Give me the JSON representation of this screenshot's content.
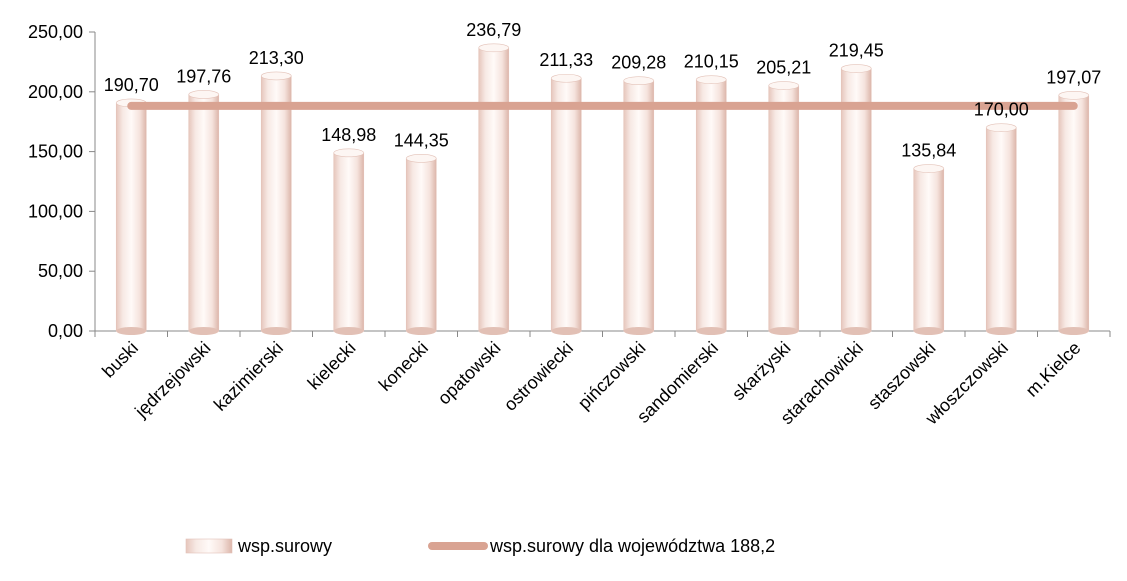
{
  "chart_data": {
    "type": "bar",
    "categories": [
      "buski",
      "jędrzejowski",
      "kazimierski",
      "kielecki",
      "konecki",
      "opatowski",
      "ostrowiecki",
      "pińczowski",
      "sandomierski",
      "skarżyski",
      "starachowicki",
      "staszowski",
      "włoszczowski",
      "m.Kielce"
    ],
    "series": [
      {
        "name": "wsp.surowy",
        "type": "bar",
        "values": [
          190.7,
          197.76,
          213.3,
          148.98,
          144.35,
          236.79,
          211.33,
          209.28,
          210.15,
          205.21,
          219.45,
          135.84,
          170.0,
          197.07
        ],
        "value_labels": [
          "190,70",
          "197,76",
          "213,30",
          "148,98",
          "144,35",
          "236,79",
          "211,33",
          "209,28",
          "210,15",
          "205,21",
          "219,45",
          "135,84",
          "170,00",
          "197,07"
        ],
        "color": "#f2dcd5"
      },
      {
        "name": "wsp.surowy dla województwa 188,2",
        "type": "line",
        "values": [
          188.2,
          188.2,
          188.2,
          188.2,
          188.2,
          188.2,
          188.2,
          188.2,
          188.2,
          188.2,
          188.2,
          188.2,
          188.2,
          188.2
        ],
        "color": "#d9a392"
      }
    ],
    "ylim": [
      0,
      250
    ],
    "yticks": [
      0,
      50,
      100,
      150,
      200,
      250
    ],
    "ytick_labels": [
      "0,00",
      "50,00",
      "100,00",
      "150,00",
      "200,00",
      "250,00"
    ],
    "title": "",
    "xlabel": "",
    "ylabel": "",
    "grid": false,
    "legend_position": "bottom"
  },
  "colors": {
    "bar_fill": "#f2dcd5",
    "bar_edge": "#e3c2b8",
    "line": "#d9a392",
    "axis": "#888888"
  }
}
